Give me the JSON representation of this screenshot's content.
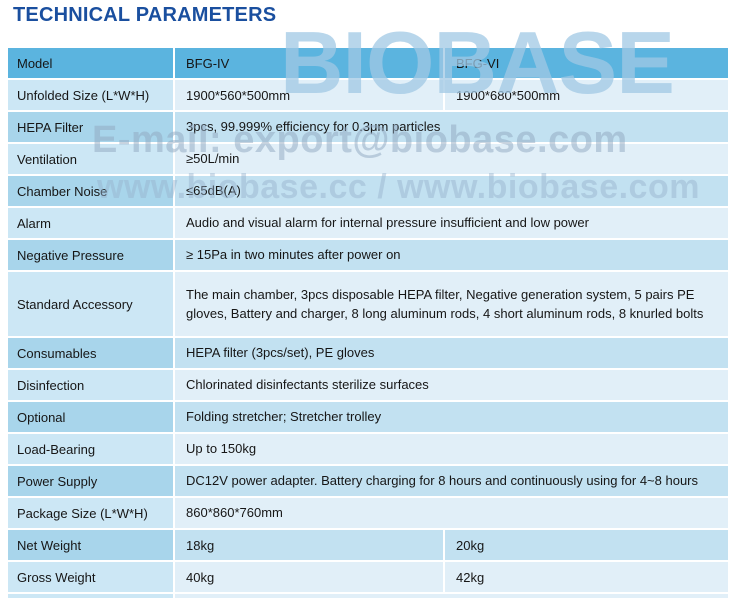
{
  "page": {
    "title": "TECHNICAL PARAMETERS"
  },
  "watermarks": {
    "brand": "BIOBASE",
    "email": "E-mail: export@biobase.com",
    "web": "www.biobase.cc / www.biobase.com"
  },
  "colors": {
    "title_color": "#1a4f9f",
    "header_bg": "#5bb4df",
    "light_label": "#cce7f5",
    "light_value": "#e1eff8",
    "dark_label": "#a8d5eb",
    "dark_value": "#c2e1f1"
  },
  "table": {
    "header": {
      "label": "Model",
      "col1": "BFG-IV",
      "col2": "BFG-VI"
    },
    "rows": [
      {
        "label": "Unfolded Size (L*W*H)",
        "col1": "1900*560*500mm",
        "col2": "1900*680*500mm"
      },
      {
        "label": "HEPA Filter",
        "value": "3pcs, 99.999% efficiency for 0.3μm particles"
      },
      {
        "label": "Ventilation",
        "value": "≥50L/min"
      },
      {
        "label": "Chamber Noise",
        "value": "≤65dB(A)"
      },
      {
        "label": "Alarm",
        "value": "Audio and visual alarm for internal pressure insufficient and low power"
      },
      {
        "label": "Negative Pressure",
        "value": "≥ 15Pa in two minutes after power on"
      },
      {
        "label": "Standard Accessory",
        "value": "The main chamber, 3pcs disposable HEPA filter, Negative generation system, 5 pairs PE gloves, Battery and charger, 8 long aluminum rods, 4 short aluminum rods, 8 knurled bolts"
      },
      {
        "label": "Consumables",
        "value": "HEPA filter (3pcs/set), PE gloves"
      },
      {
        "label": "Disinfection",
        "value": "Chlorinated disinfectants sterilize surfaces"
      },
      {
        "label": "Optional",
        "value": "Folding stretcher; Stretcher trolley"
      },
      {
        "label": "Load-Bearing",
        "value": "Up to 150kg"
      },
      {
        "label": "Power Supply",
        "value": "DC12V power adapter. Battery charging for 8 hours and continuously using for 4~8 hours"
      },
      {
        "label": "Package Size (L*W*H)",
        "value": "860*860*760mm"
      },
      {
        "label": "Net Weight",
        "col1": "18kg",
        "col2": "20kg"
      },
      {
        "label": "Gross Weight",
        "col1": "40kg",
        "col2": "42kg"
      }
    ]
  }
}
